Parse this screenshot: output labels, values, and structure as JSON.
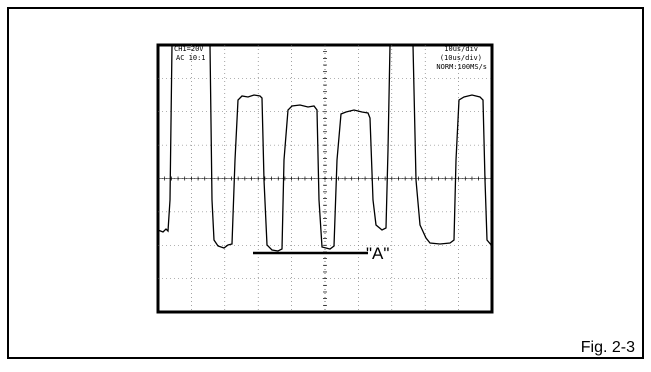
{
  "screen": {
    "channel": "CH1=20V",
    "coupling": "AC  10:1",
    "timebase": "10us/div",
    "timebase_sub": "(10us/div)",
    "mode": "NORM:100MS/s"
  },
  "marker_label": "\"A\"",
  "caption": "Fig. 2-3"
}
